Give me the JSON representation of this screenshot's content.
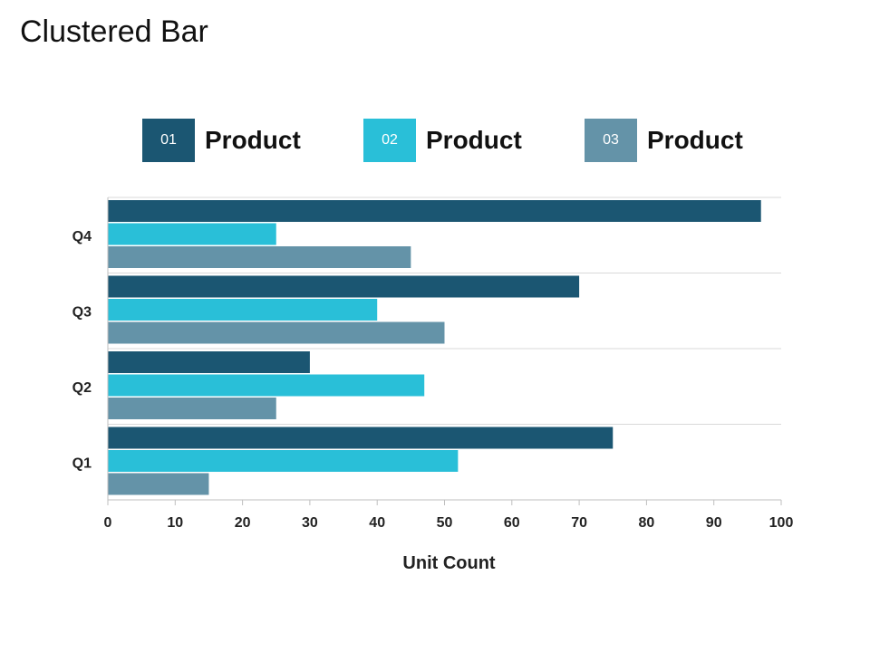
{
  "title": "Clustered Bar",
  "legend": [
    {
      "number": "01",
      "label": "Product",
      "color": "#1b5672"
    },
    {
      "number": "02",
      "label": "Product",
      "color": "#29bfd8"
    },
    {
      "number": "03",
      "label": "Product",
      "color": "#6493a8"
    }
  ],
  "chart_data": {
    "type": "bar",
    "orientation": "horizontal",
    "title": "Clustered Bar",
    "xlabel": "Unit Count",
    "ylabel": "",
    "categories": [
      "Q1",
      "Q2",
      "Q3",
      "Q4"
    ],
    "series": [
      {
        "name": "01 Product",
        "color": "#1b5672",
        "values": [
          75,
          30,
          70,
          97
        ]
      },
      {
        "name": "02 Product",
        "color": "#29bfd8",
        "values": [
          52,
          47,
          40,
          25
        ]
      },
      {
        "name": "03 Product",
        "color": "#6493a8",
        "values": [
          15,
          25,
          50,
          45
        ]
      }
    ],
    "xlim": [
      0,
      100
    ],
    "xticks": [
      "0",
      "10",
      "20",
      "30",
      "40",
      "50",
      "60",
      "70",
      "80",
      "90",
      "100"
    ],
    "grid": true,
    "legend_position": "top"
  }
}
